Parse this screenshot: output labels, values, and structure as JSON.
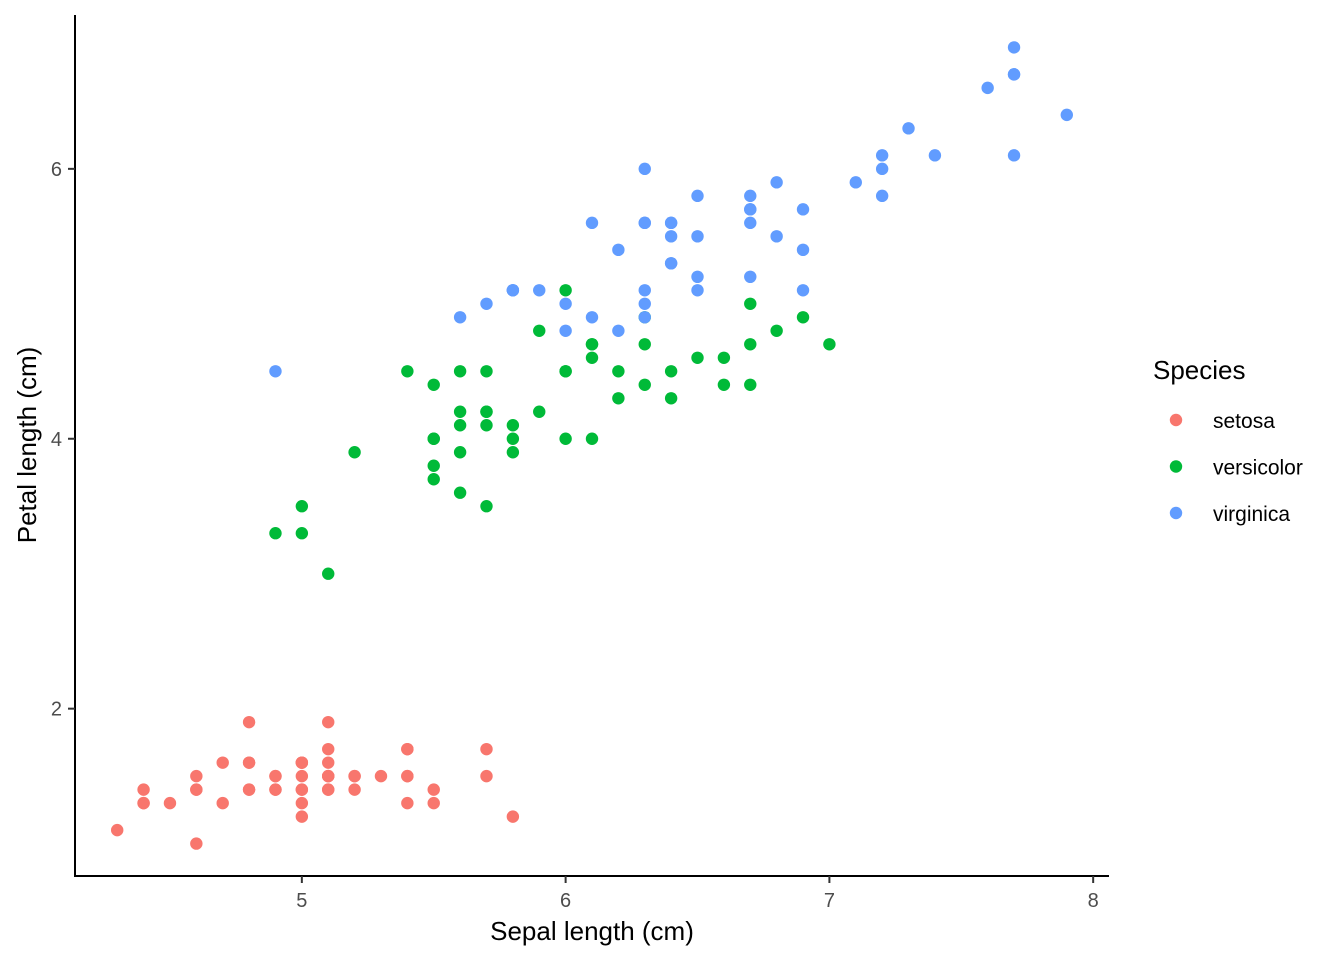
{
  "chart_data": {
    "type": "scatter",
    "title": "",
    "xlabel": "Sepal length (cm)",
    "ylabel": "Petal length (cm)",
    "xlim": [
      4.14,
      8.06
    ],
    "ylim": [
      0.76,
      7.14
    ],
    "x_ticks": [
      5,
      6,
      7,
      8
    ],
    "y_ticks": [
      2,
      4,
      6
    ],
    "x_tick_labels": [
      "5",
      "6",
      "7",
      "8"
    ],
    "y_tick_labels": [
      "2",
      "4",
      "6"
    ],
    "grid": false,
    "legend": {
      "title": "Species",
      "position": "right"
    },
    "series": [
      {
        "name": "setosa",
        "color": "#F8766D",
        "points": [
          [
            5.1,
            1.4
          ],
          [
            4.9,
            1.4
          ],
          [
            4.7,
            1.3
          ],
          [
            4.6,
            1.5
          ],
          [
            5.0,
            1.4
          ],
          [
            5.4,
            1.7
          ],
          [
            4.6,
            1.4
          ],
          [
            5.0,
            1.5
          ],
          [
            4.4,
            1.4
          ],
          [
            4.9,
            1.5
          ],
          [
            5.4,
            1.5
          ],
          [
            4.8,
            1.6
          ],
          [
            4.8,
            1.4
          ],
          [
            4.3,
            1.1
          ],
          [
            5.8,
            1.2
          ],
          [
            5.7,
            1.5
          ],
          [
            5.4,
            1.3
          ],
          [
            5.1,
            1.4
          ],
          [
            5.7,
            1.7
          ],
          [
            5.1,
            1.5
          ],
          [
            5.4,
            1.7
          ],
          [
            5.1,
            1.5
          ],
          [
            4.6,
            1.0
          ],
          [
            5.1,
            1.7
          ],
          [
            4.8,
            1.9
          ],
          [
            5.0,
            1.6
          ],
          [
            5.0,
            1.6
          ],
          [
            5.2,
            1.5
          ],
          [
            5.2,
            1.4
          ],
          [
            4.7,
            1.6
          ],
          [
            4.8,
            1.6
          ],
          [
            5.4,
            1.5
          ],
          [
            5.2,
            1.5
          ],
          [
            5.5,
            1.4
          ],
          [
            4.9,
            1.5
          ],
          [
            5.0,
            1.2
          ],
          [
            5.5,
            1.3
          ],
          [
            4.9,
            1.4
          ],
          [
            4.4,
            1.3
          ],
          [
            5.1,
            1.5
          ],
          [
            5.0,
            1.3
          ],
          [
            4.5,
            1.3
          ],
          [
            4.4,
            1.3
          ],
          [
            5.0,
            1.6
          ],
          [
            5.1,
            1.9
          ],
          [
            4.8,
            1.4
          ],
          [
            5.1,
            1.6
          ],
          [
            4.6,
            1.4
          ],
          [
            5.3,
            1.5
          ],
          [
            5.0,
            1.4
          ]
        ]
      },
      {
        "name": "versicolor",
        "color": "#00BA38",
        "points": [
          [
            7.0,
            4.7
          ],
          [
            6.4,
            4.5
          ],
          [
            6.9,
            4.9
          ],
          [
            5.5,
            4.0
          ],
          [
            6.5,
            4.6
          ],
          [
            5.7,
            4.5
          ],
          [
            6.3,
            4.7
          ],
          [
            4.9,
            3.3
          ],
          [
            6.6,
            4.6
          ],
          [
            5.2,
            3.9
          ],
          [
            5.0,
            3.5
          ],
          [
            5.9,
            4.2
          ],
          [
            6.0,
            4.0
          ],
          [
            6.1,
            4.7
          ],
          [
            5.6,
            3.6
          ],
          [
            6.7,
            4.4
          ],
          [
            5.6,
            4.5
          ],
          [
            5.8,
            4.1
          ],
          [
            6.2,
            4.5
          ],
          [
            5.6,
            3.9
          ],
          [
            5.9,
            4.8
          ],
          [
            6.1,
            4.0
          ],
          [
            6.3,
            4.9
          ],
          [
            6.1,
            4.7
          ],
          [
            6.4,
            4.3
          ],
          [
            6.6,
            4.4
          ],
          [
            6.8,
            4.8
          ],
          [
            6.7,
            5.0
          ],
          [
            6.0,
            4.5
          ],
          [
            5.7,
            3.5
          ],
          [
            5.5,
            3.8
          ],
          [
            5.5,
            3.7
          ],
          [
            5.8,
            3.9
          ],
          [
            6.0,
            5.1
          ],
          [
            5.4,
            4.5
          ],
          [
            6.0,
            4.5
          ],
          [
            6.7,
            4.7
          ],
          [
            6.3,
            4.4
          ],
          [
            5.6,
            4.1
          ],
          [
            5.5,
            4.0
          ],
          [
            5.5,
            4.4
          ],
          [
            6.1,
            4.6
          ],
          [
            5.8,
            4.0
          ],
          [
            5.0,
            3.3
          ],
          [
            5.6,
            4.2
          ],
          [
            5.7,
            4.2
          ],
          [
            5.7,
            4.2
          ],
          [
            6.2,
            4.3
          ],
          [
            5.1,
            3.0
          ],
          [
            5.7,
            4.1
          ]
        ]
      },
      {
        "name": "virginica",
        "color": "#619CFF",
        "points": [
          [
            6.3,
            6.0
          ],
          [
            5.8,
            5.1
          ],
          [
            7.1,
            5.9
          ],
          [
            6.3,
            5.6
          ],
          [
            6.5,
            5.8
          ],
          [
            7.6,
            6.6
          ],
          [
            4.9,
            4.5
          ],
          [
            7.3,
            6.3
          ],
          [
            6.7,
            5.8
          ],
          [
            7.2,
            6.1
          ],
          [
            6.5,
            5.1
          ],
          [
            6.4,
            5.3
          ],
          [
            6.8,
            5.5
          ],
          [
            5.7,
            5.0
          ],
          [
            5.8,
            5.1
          ],
          [
            6.4,
            5.3
          ],
          [
            6.5,
            5.5
          ],
          [
            7.7,
            6.7
          ],
          [
            7.7,
            6.9
          ],
          [
            6.0,
            5.0
          ],
          [
            6.9,
            5.7
          ],
          [
            5.6,
            4.9
          ],
          [
            7.7,
            6.7
          ],
          [
            6.3,
            4.9
          ],
          [
            6.7,
            5.7
          ],
          [
            7.2,
            6.0
          ],
          [
            6.2,
            4.8
          ],
          [
            6.1,
            4.9
          ],
          [
            6.4,
            5.6
          ],
          [
            7.2,
            5.8
          ],
          [
            7.4,
            6.1
          ],
          [
            7.9,
            6.4
          ],
          [
            6.4,
            5.6
          ],
          [
            6.3,
            5.1
          ],
          [
            6.1,
            5.6
          ],
          [
            7.7,
            6.1
          ],
          [
            6.3,
            5.6
          ],
          [
            6.4,
            5.5
          ],
          [
            6.0,
            4.8
          ],
          [
            6.9,
            5.4
          ],
          [
            6.7,
            5.6
          ],
          [
            6.9,
            5.1
          ],
          [
            5.8,
            5.1
          ],
          [
            6.8,
            5.9
          ],
          [
            6.7,
            5.7
          ],
          [
            6.7,
            5.2
          ],
          [
            6.3,
            5.0
          ],
          [
            6.5,
            5.2
          ],
          [
            6.2,
            5.4
          ],
          [
            5.9,
            5.1
          ]
        ]
      }
    ]
  }
}
